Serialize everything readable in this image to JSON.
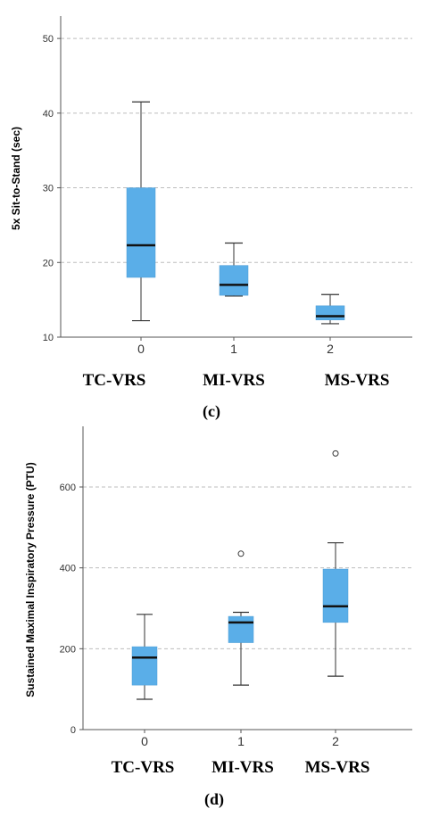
{
  "chart_data": [
    {
      "type": "box",
      "panel_label": "(c)",
      "ylabel": "5x Sit-to-Stand (sec)",
      "ylim": [
        10,
        53
      ],
      "yticks": [
        10,
        20,
        30,
        40,
        50
      ],
      "grid": true,
      "x_ticks": [
        "0",
        "1",
        "2"
      ],
      "group_labels": [
        "TC-VRS",
        "MI-VRS",
        "MS-VRS"
      ],
      "box_color": "#5aaee8",
      "boxes": [
        {
          "min": 12.2,
          "q1": 18.0,
          "median": 22.3,
          "q3": 30.0,
          "max": 41.5,
          "outliers": []
        },
        {
          "min": 15.5,
          "q1": 15.6,
          "median": 17.0,
          "q3": 19.6,
          "max": 22.6,
          "outliers": []
        },
        {
          "min": 11.8,
          "q1": 12.3,
          "median": 12.8,
          "q3": 14.2,
          "max": 15.7,
          "outliers": []
        }
      ]
    },
    {
      "type": "box",
      "panel_label": "(d)",
      "ylabel": "Sustained Maximal Inspiratory Pressure (PTU)",
      "ylim": [
        0,
        750
      ],
      "yticks": [
        0,
        200,
        400,
        600
      ],
      "grid": true,
      "x_ticks": [
        "0",
        "1",
        "2"
      ],
      "group_labels": [
        "TC-VRS",
        "MI-VRS",
        "MS-VRS"
      ],
      "box_color": "#5aaee8",
      "boxes": [
        {
          "min": 75,
          "q1": 110,
          "median": 178,
          "q3": 205,
          "max": 285,
          "outliers": []
        },
        {
          "min": 110,
          "q1": 215,
          "median": 265,
          "q3": 280,
          "max": 290,
          "outliers": [
            435
          ]
        },
        {
          "min": 132,
          "q1": 265,
          "median": 305,
          "q3": 397,
          "max": 462,
          "outliers": [
            683
          ]
        }
      ]
    }
  ]
}
